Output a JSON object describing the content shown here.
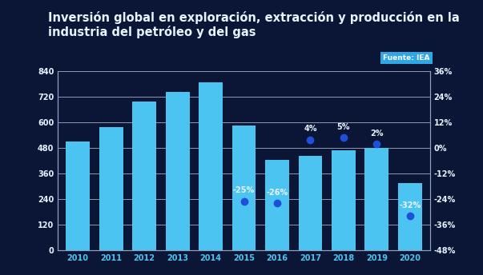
{
  "chart_data": {
    "type": "bar",
    "title": "Inversión global en exploración, extracción y producción en la industria del petróleo y del gas",
    "source": "Fuente: IEA",
    "categories": [
      "2010",
      "2011",
      "2012",
      "2013",
      "2014",
      "2015",
      "2016",
      "2017",
      "2018",
      "2019",
      "2020"
    ],
    "series": [
      {
        "type": "bar",
        "color": "#4cc4f2",
        "values": [
          510,
          580,
          700,
          745,
          790,
          585,
          425,
          445,
          470,
          480,
          315
        ]
      },
      {
        "type": "scatter",
        "axis": "y2",
        "color": "#1f4fd8",
        "marker": "circle",
        "data_labels": true,
        "values": [
          null,
          null,
          null,
          null,
          null,
          -25,
          -26,
          4,
          5,
          2,
          -32
        ],
        "value_labels": [
          null,
          null,
          null,
          null,
          null,
          "-25%",
          "-26%",
          "4%",
          "5%",
          "2%",
          "-32%"
        ]
      }
    ],
    "ylim": [
      0,
      840
    ],
    "yticks": [
      0,
      120,
      240,
      360,
      480,
      600,
      720,
      840
    ],
    "y2lim": [
      -48,
      36
    ],
    "y2ticks": [
      {
        "value": -48,
        "label": "-48%"
      },
      {
        "value": -36,
        "label": "-36%"
      },
      {
        "value": -24,
        "label": "-24%"
      },
      {
        "value": -12,
        "label": "-12%"
      },
      {
        "value": 0,
        "label": "0%"
      },
      {
        "value": 12,
        "label": "12%"
      },
      {
        "value": 24,
        "label": "24%"
      },
      {
        "value": 36,
        "label": "36%"
      }
    ],
    "grid": true
  }
}
